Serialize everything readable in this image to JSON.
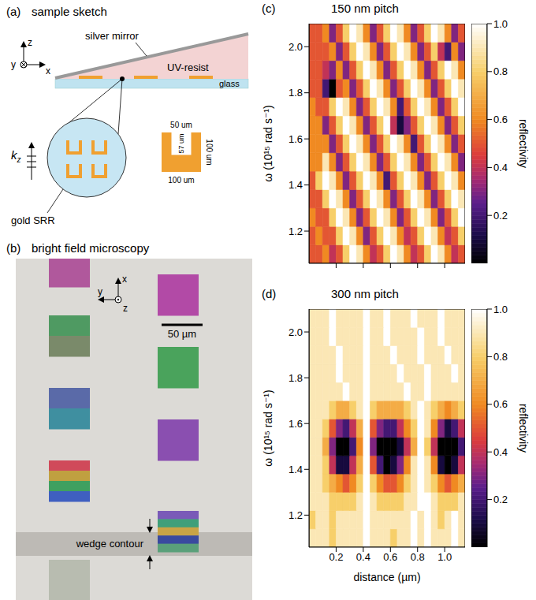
{
  "sketch": {
    "letter": "(a)",
    "title": "sample sketch",
    "axes": {
      "z": "z",
      "y": "y",
      "x": "x"
    },
    "mirror": "silver mirror",
    "resist": "UV-resist",
    "glass": "glass",
    "wave": {
      "symbol": "k",
      "index": "z"
    },
    "zoom": "gold SRR",
    "dimensions": {
      "gap": "50 um",
      "depth": "57 um",
      "height": "100 um",
      "width": "100 um"
    }
  },
  "microscopy": {
    "letter": "(b)",
    "title": "bright field microscopy",
    "axes": {
      "y": "y",
      "x": "x",
      "z": "z"
    },
    "scale_bar": "50 µm",
    "contour": "wedge contour",
    "columns": [
      [
        [
          "#b0589c"
        ],
        [
          "#4f9a62",
          "#7a8a6a"
        ],
        [
          "#5a6aa8",
          "#3f8fa0"
        ],
        [
          "#d04a5a",
          "#c0a040",
          "#3fa060",
          "#3f5fc0"
        ],
        [
          "#b8bcb0"
        ]
      ],
      [
        [
          "#b24aa6"
        ],
        [
          "#4aa35c"
        ],
        [
          "#8a4fb0"
        ],
        [
          "#7a5ab8",
          "#3f9f7a",
          "#c9a446",
          "#3a4a9f",
          "#5aa07a"
        ]
      ]
    ]
  },
  "chart_data": [
    {
      "type": "heatmap",
      "letter": "(c)",
      "title": "150 nm pitch",
      "ylabel": "ω  (10¹⁵ rad s⁻¹)",
      "tick_labels": "y",
      "xlim": [
        0,
        1.15
      ],
      "xticks": [
        0.2,
        0.4,
        0.6,
        0.8,
        {
          "value": 1,
          "label": "1.0"
        }
      ],
      "ylim": [
        1.06,
        2.1
      ],
      "yticks": [
        1.2,
        1.4,
        1.6,
        1.8,
        {
          "value": 2,
          "label": "2.0"
        }
      ],
      "x_bins": [
        0,
        0.05,
        0.1,
        0.15,
        0.2,
        0.25,
        0.3,
        0.35,
        0.4,
        0.45,
        0.5,
        0.55,
        0.6,
        0.65,
        0.7,
        0.75,
        0.8,
        0.85,
        0.9,
        0.95,
        1.0,
        1.05,
        1.1,
        1.15
      ],
      "y_bins": [
        1.06,
        1.14,
        1.22,
        1.3,
        1.38,
        1.46,
        1.54,
        1.62,
        1.7,
        1.78,
        1.86,
        1.94,
        2.02,
        2.1
      ],
      "cells": [
        [
          0.5,
          0.5,
          0.6,
          0.4,
          0.5,
          0.8,
          1.0,
          0.9,
          0.6,
          0.4,
          0.5,
          0.8,
          1.0,
          0.9,
          0.6,
          0.4,
          0.5,
          0.8,
          1.0,
          0.9,
          0.6,
          0.4,
          0.5
        ],
        [
          0.5,
          0.6,
          0.5,
          0.5,
          0.8,
          1.0,
          0.9,
          0.6,
          0.3,
          0.5,
          0.8,
          1.0,
          0.9,
          0.6,
          0.4,
          0.5,
          0.8,
          1.0,
          0.9,
          0.6,
          0.4,
          0.5,
          0.8
        ],
        [
          0.6,
          0.5,
          0.5,
          0.8,
          1.0,
          0.9,
          0.6,
          0.3,
          0.5,
          0.8,
          1.0,
          0.9,
          0.6,
          0.3,
          0.5,
          0.8,
          1.0,
          0.9,
          0.6,
          0.3,
          0.5,
          0.8,
          1.0
        ],
        [
          0.5,
          0.5,
          0.8,
          1.0,
          0.9,
          0.6,
          0.3,
          0.5,
          0.8,
          1.0,
          0.9,
          0.6,
          0.3,
          0.5,
          0.8,
          1.0,
          0.9,
          0.6,
          0.3,
          0.5,
          0.8,
          1.0,
          0.9
        ],
        [
          0.5,
          0.8,
          1.0,
          0.9,
          0.6,
          0.3,
          0.5,
          0.8,
          1.0,
          0.9,
          0.6,
          0.2,
          0.5,
          0.8,
          1.0,
          0.9,
          0.6,
          0.3,
          0.5,
          0.8,
          1.0,
          0.9,
          0.6
        ],
        [
          0.6,
          0.6,
          0.9,
          0.6,
          0.3,
          0.5,
          0.8,
          1.0,
          0.9,
          0.6,
          0.3,
          0.5,
          0.8,
          1.0,
          0.9,
          0.6,
          0.3,
          0.5,
          0.8,
          1.0,
          0.9,
          0.6,
          0.3
        ],
        [
          0.6,
          0.6,
          0.6,
          0.3,
          0.5,
          0.8,
          1.0,
          0.9,
          0.6,
          0.3,
          0.5,
          0.8,
          1.0,
          0.9,
          0.6,
          0.2,
          0.5,
          0.8,
          1.0,
          0.9,
          0.6,
          0.3,
          0.5
        ],
        [
          0.6,
          0.6,
          0.3,
          0.5,
          0.8,
          1.0,
          0.9,
          0.6,
          0.3,
          0.5,
          0.8,
          1.0,
          0.4,
          0.1,
          0.3,
          0.5,
          0.8,
          1.0,
          0.9,
          0.6,
          0.3,
          0.5,
          0.8
        ],
        [
          0.6,
          0.5,
          0.5,
          0.8,
          1.0,
          0.9,
          0.6,
          0.3,
          0.5,
          0.8,
          1.0,
          0.9,
          0.6,
          0.2,
          0.5,
          0.8,
          1.0,
          0.9,
          0.6,
          0.3,
          0.5,
          0.8,
          1.0
        ],
        [
          0.5,
          0.5,
          0.2,
          0.0,
          0.5,
          0.6,
          0.3,
          0.5,
          0.8,
          1.0,
          0.9,
          0.6,
          0.3,
          0.5,
          0.8,
          1.0,
          0.9,
          0.6,
          0.3,
          0.5,
          0.8,
          1.0,
          0.9
        ],
        [
          0.5,
          0.5,
          0.4,
          0.3,
          0.6,
          0.3,
          0.5,
          0.8,
          1.0,
          0.9,
          0.6,
          0.3,
          0.5,
          0.8,
          1.0,
          0.9,
          0.6,
          0.3,
          0.5,
          0.8,
          1.0,
          0.9,
          0.6
        ],
        [
          0.5,
          0.5,
          0.5,
          0.6,
          0.3,
          0.5,
          0.8,
          1.0,
          0.9,
          0.6,
          0.3,
          0.5,
          0.8,
          1.0,
          0.9,
          0.6,
          0.3,
          0.5,
          0.8,
          0.4,
          0.2,
          0.6,
          0.3
        ],
        [
          0.5,
          0.5,
          0.6,
          0.3,
          0.5,
          0.8,
          1.0,
          0.9,
          0.6,
          0.3,
          0.5,
          0.8,
          1.0,
          0.9,
          0.6,
          0.3,
          0.5,
          0.8,
          1.0,
          0.9,
          0.6,
          0.3,
          0.5
        ]
      ],
      "colorbar": {
        "range": [
          0,
          1
        ],
        "ticks": [
          0.2,
          0.4,
          0.6,
          0.8,
          {
            "value": 1,
            "label": "1.0"
          }
        ],
        "label": "reflectivity"
      }
    },
    {
      "type": "heatmap",
      "letter": "(d)",
      "title": "300 nm pitch",
      "ylabel": "ω  (10¹⁵ rad s⁻¹)",
      "xlabel": "distance (µm)",
      "xlim": [
        0,
        1.15
      ],
      "xticks": [
        0.2,
        0.4,
        0.6,
        0.8,
        {
          "value": 1,
          "label": "1.0"
        }
      ],
      "ylim": [
        1.06,
        2.1
      ],
      "yticks": [
        1.2,
        1.4,
        1.6,
        1.8,
        {
          "value": 2,
          "label": "2.0"
        }
      ],
      "x_bins": [
        0,
        0.05,
        0.1,
        0.15,
        0.2,
        0.25,
        0.3,
        0.35,
        0.4,
        0.45,
        0.5,
        0.55,
        0.6,
        0.65,
        0.7,
        0.75,
        0.8,
        0.85,
        0.9,
        0.95,
        1.0,
        1.05,
        1.1,
        1.15
      ],
      "y_bins": [
        1.06,
        1.14,
        1.22,
        1.3,
        1.38,
        1.46,
        1.54,
        1.62,
        1.7,
        1.78,
        1.86,
        1.94,
        2.02,
        2.1
      ],
      "cells": [
        [
          0.9,
          0.9,
          0.9,
          0.8,
          0.9,
          0.9,
          0.9,
          0.9,
          1.0,
          0.9,
          0.9,
          0.9,
          0.8,
          0.9,
          0.9,
          1.0,
          0.9,
          1.0,
          0.9,
          0.9,
          0.9,
          1.0,
          0.9
        ],
        [
          0.8,
          0.9,
          0.9,
          0.8,
          0.9,
          0.9,
          0.9,
          0.9,
          1.0,
          0.9,
          0.9,
          0.9,
          0.9,
          0.9,
          0.9,
          1.0,
          0.9,
          1.0,
          0.9,
          0.8,
          0.9,
          1.0,
          0.9
        ],
        [
          0.9,
          0.9,
          0.9,
          0.8,
          0.8,
          0.8,
          0.8,
          0.9,
          1.0,
          0.9,
          0.8,
          0.8,
          0.8,
          0.8,
          0.9,
          0.9,
          1.0,
          1.0,
          0.9,
          0.8,
          0.8,
          0.8,
          0.9
        ],
        [
          0.9,
          0.9,
          0.8,
          0.7,
          0.6,
          0.5,
          0.6,
          0.8,
          1.0,
          0.8,
          0.6,
          0.5,
          0.5,
          0.6,
          0.8,
          0.9,
          1.0,
          0.9,
          0.8,
          0.6,
          0.5,
          0.6,
          0.7
        ],
        [
          0.9,
          0.9,
          0.8,
          0.4,
          0.1,
          0.1,
          0.4,
          0.7,
          1.0,
          0.5,
          0.2,
          0.0,
          0.1,
          0.3,
          0.6,
          0.9,
          1.0,
          0.9,
          0.6,
          0.1,
          0.0,
          0.1,
          0.4
        ],
        [
          0.9,
          0.9,
          0.7,
          0.3,
          0.0,
          0.0,
          0.2,
          0.6,
          1.0,
          0.3,
          0.0,
          0.0,
          0.0,
          0.1,
          0.4,
          0.7,
          1.0,
          0.8,
          0.4,
          0.0,
          0.0,
          0.0,
          0.2
        ],
        [
          0.9,
          0.9,
          0.8,
          0.5,
          0.3,
          0.2,
          0.4,
          0.7,
          1.0,
          0.5,
          0.3,
          0.2,
          0.2,
          0.4,
          0.6,
          0.8,
          1.0,
          0.9,
          0.6,
          0.3,
          0.1,
          0.2,
          0.4
        ],
        [
          0.9,
          0.9,
          0.9,
          0.8,
          0.7,
          0.7,
          0.8,
          0.9,
          1.0,
          0.8,
          0.7,
          0.7,
          0.7,
          0.7,
          0.8,
          0.9,
          1.0,
          0.9,
          0.8,
          0.7,
          0.6,
          0.7,
          0.8
        ],
        [
          0.9,
          0.9,
          0.9,
          0.9,
          0.9,
          1.0,
          0.9,
          0.9,
          1.0,
          0.9,
          0.9,
          0.9,
          0.9,
          0.9,
          1.0,
          0.9,
          0.9,
          1.0,
          0.9,
          0.9,
          0.9,
          0.9,
          0.9
        ],
        [
          0.9,
          0.9,
          0.9,
          0.9,
          1.0,
          0.9,
          0.9,
          0.9,
          1.0,
          0.9,
          0.9,
          0.9,
          0.9,
          1.0,
          0.9,
          0.9,
          0.9,
          1.0,
          0.9,
          0.9,
          0.9,
          1.0,
          0.9
        ],
        [
          0.9,
          0.9,
          0.9,
          0.9,
          1.0,
          0.9,
          0.9,
          0.9,
          1.0,
          0.9,
          0.9,
          0.9,
          1.0,
          0.9,
          0.9,
          0.9,
          1.0,
          0.9,
          0.9,
          0.9,
          1.0,
          0.9,
          0.9
        ],
        [
          0.9,
          0.9,
          0.9,
          1.0,
          0.9,
          0.9,
          0.9,
          0.9,
          1.0,
          0.9,
          0.9,
          1.0,
          0.9,
          0.9,
          0.9,
          0.9,
          1.0,
          0.9,
          0.9,
          1.0,
          0.9,
          0.9,
          0.9
        ],
        [
          0.9,
          0.9,
          0.9,
          1.0,
          0.9,
          0.9,
          0.9,
          0.9,
          1.0,
          0.9,
          0.9,
          1.0,
          0.9,
          0.9,
          0.9,
          1.0,
          0.9,
          0.9,
          0.9,
          1.0,
          0.9,
          0.9,
          0.9
        ]
      ],
      "colorbar": {
        "range": [
          0,
          1
        ],
        "ticks": [
          0.2,
          0.4,
          0.6,
          0.8,
          {
            "value": 1,
            "label": "1.0"
          }
        ],
        "label": "reflectivity"
      }
    }
  ]
}
